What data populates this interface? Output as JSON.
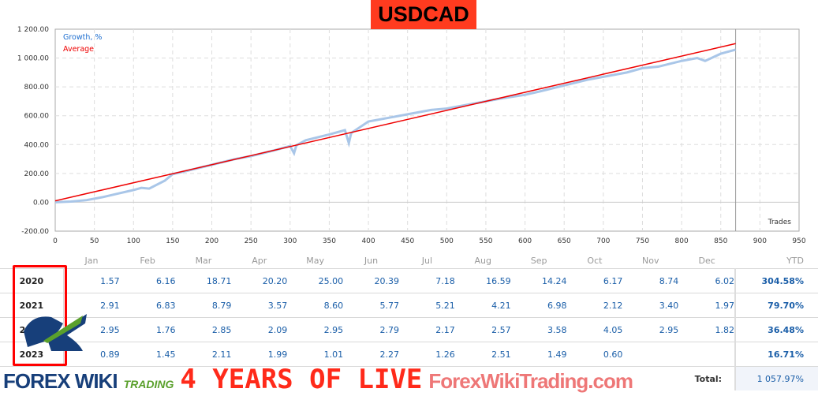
{
  "title": "USDCAD",
  "chart_data": {
    "type": "line",
    "xlabel": "Trades",
    "xlim": [
      0,
      950
    ],
    "ylim": [
      -200,
      1200
    ],
    "xticks": [
      0,
      50,
      100,
      150,
      200,
      250,
      300,
      350,
      400,
      450,
      500,
      550,
      600,
      650,
      700,
      750,
      800,
      850,
      900,
      950
    ],
    "yticks": [
      "-200.00",
      "0.00",
      "200.00",
      "400.00",
      "600.00",
      "800.00",
      "1 000.00",
      "1 200.00"
    ],
    "ytick_values": [
      -200,
      0,
      200,
      400,
      600,
      800,
      1000,
      1200
    ],
    "grid": true,
    "legend_placement": "top-left",
    "current_trade_marker": 869,
    "series": [
      {
        "name": "Growth, %",
        "color": "#a9c6e8",
        "x": [
          0,
          20,
          40,
          60,
          80,
          100,
          110,
          120,
          140,
          150,
          170,
          200,
          230,
          250,
          280,
          300,
          305,
          308,
          320,
          350,
          370,
          375,
          378,
          400,
          430,
          450,
          480,
          500,
          530,
          550,
          570,
          600,
          620,
          650,
          680,
          700,
          730,
          750,
          770,
          800,
          820,
          830,
          850,
          869
        ],
        "y": [
          0,
          5,
          15,
          35,
          60,
          85,
          100,
          95,
          150,
          195,
          220,
          260,
          300,
          320,
          360,
          390,
          340,
          395,
          430,
          470,
          500,
          410,
          480,
          560,
          590,
          610,
          640,
          650,
          680,
          700,
          720,
          745,
          770,
          810,
          850,
          870,
          900,
          930,
          940,
          980,
          1000,
          980,
          1030,
          1058
        ]
      },
      {
        "name": "Average",
        "color": "#ee0000",
        "x": [
          0,
          869
        ],
        "y": [
          10,
          1100
        ]
      }
    ]
  },
  "table": {
    "headers": [
      "Jan",
      "Feb",
      "Mar",
      "Apr",
      "May",
      "Jun",
      "Jul",
      "Aug",
      "Sep",
      "Oct",
      "Nov",
      "Dec",
      "YTD"
    ],
    "rows": [
      {
        "year": "2020",
        "values": [
          "1.57",
          "6.16",
          "18.71",
          "20.20",
          "25.00",
          "20.39",
          "7.18",
          "16.59",
          "14.24",
          "6.17",
          "8.74",
          "6.02"
        ],
        "ytd": "304.58%"
      },
      {
        "year": "2021",
        "values": [
          "2.91",
          "6.83",
          "8.79",
          "3.57",
          "8.60",
          "5.77",
          "5.21",
          "4.21",
          "6.98",
          "2.12",
          "3.40",
          "1.97"
        ],
        "ytd": "79.70%"
      },
      {
        "year": "2022",
        "values": [
          "2.95",
          "1.76",
          "2.85",
          "2.09",
          "2.95",
          "2.79",
          "2.17",
          "2.57",
          "3.58",
          "4.05",
          "2.95",
          "1.82"
        ],
        "ytd": "36.48%"
      },
      {
        "year": "2023",
        "values": [
          "0.89",
          "1.45",
          "2.11",
          "1.99",
          "1.01",
          "2.27",
          "1.26",
          "2.51",
          "1.49",
          "0.60",
          "",
          ""
        ],
        "ytd": "16.71%"
      }
    ],
    "total_label": "Total:",
    "total_value": "1 057.97%"
  },
  "watermark": {
    "logo": "FOREX WIKI",
    "logo_sub": "TRADING",
    "banner": "4 YEARS OF LIVE",
    "site": "ForexWikiTrading.com"
  }
}
